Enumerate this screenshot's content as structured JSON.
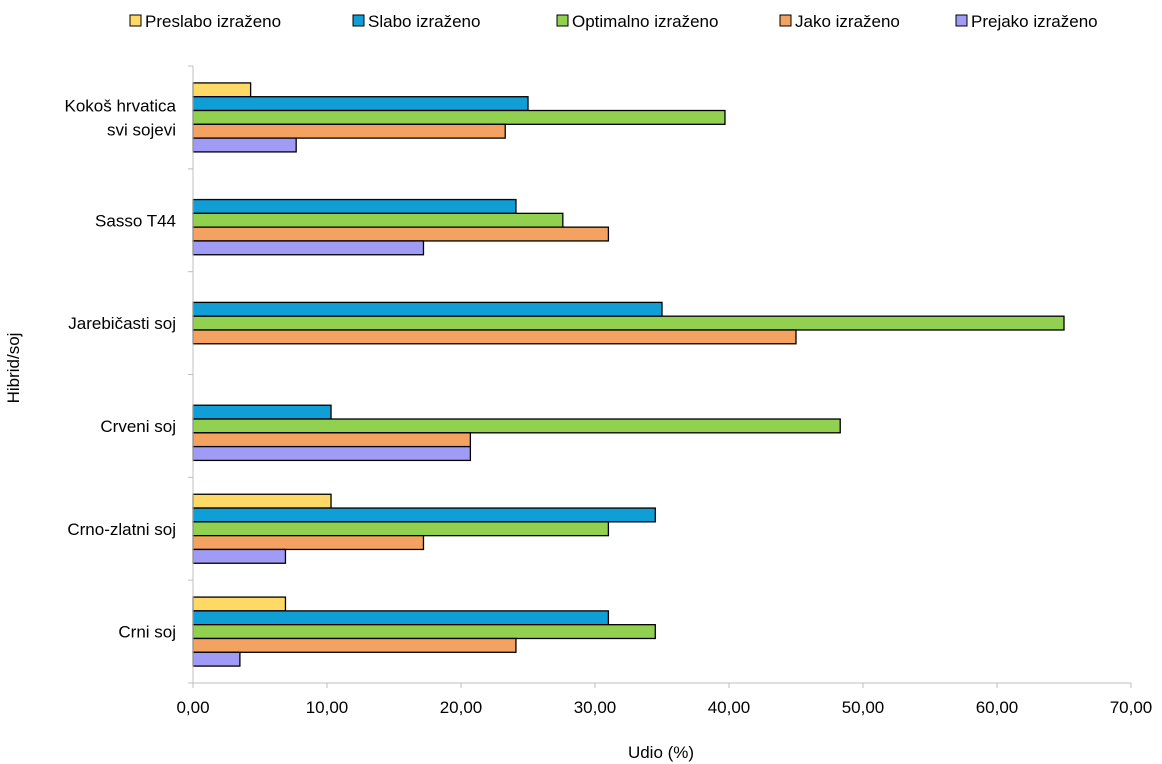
{
  "chart_data": {
    "type": "bar",
    "orientation": "horizontal",
    "title": "",
    "xlabel": "Udio (%)",
    "ylabel": "Hibrid/soj",
    "xlim": [
      0,
      70
    ],
    "xticks": [
      "0,00",
      "10,00",
      "20,00",
      "30,00",
      "40,00",
      "50,00",
      "60,00",
      "70,00"
    ],
    "grid": false,
    "legend_position": "top",
    "categories": [
      "Kokoš hrvatica svi sojevi",
      "Sasso T44",
      "Jarebičasti soj",
      "Crveni soj",
      "Crno-zlatni soj",
      "Crni soj"
    ],
    "category_lines": [
      [
        "Kokoš hrvatica",
        "svi sojevi"
      ],
      [
        "Sasso T44"
      ],
      [
        "Jarebičasti soj"
      ],
      [
        "Crveni soj"
      ],
      [
        "Crno-zlatni soj"
      ],
      [
        "Crni soj"
      ]
    ],
    "series": [
      {
        "name": "Preslabo izraženo",
        "color": "#FFD966",
        "values": [
          4.3,
          0,
          0,
          0,
          10.3,
          6.9
        ]
      },
      {
        "name": "Slabo izraženo",
        "color": "#0F9ED5",
        "values": [
          25.0,
          24.1,
          35.0,
          10.3,
          34.5,
          31.0
        ]
      },
      {
        "name": "Optimalno izraženo",
        "color": "#92D050",
        "values": [
          39.7,
          27.6,
          65.0,
          48.3,
          31.0,
          34.5
        ]
      },
      {
        "name": "Jako izraženo",
        "color": "#F4A261",
        "values": [
          23.3,
          31.0,
          45.0,
          20.7,
          17.2,
          24.1
        ]
      },
      {
        "name": "Prejako izraženo",
        "color": "#A09CF5",
        "values": [
          7.7,
          17.2,
          0,
          20.7,
          6.9,
          3.5
        ]
      }
    ]
  }
}
